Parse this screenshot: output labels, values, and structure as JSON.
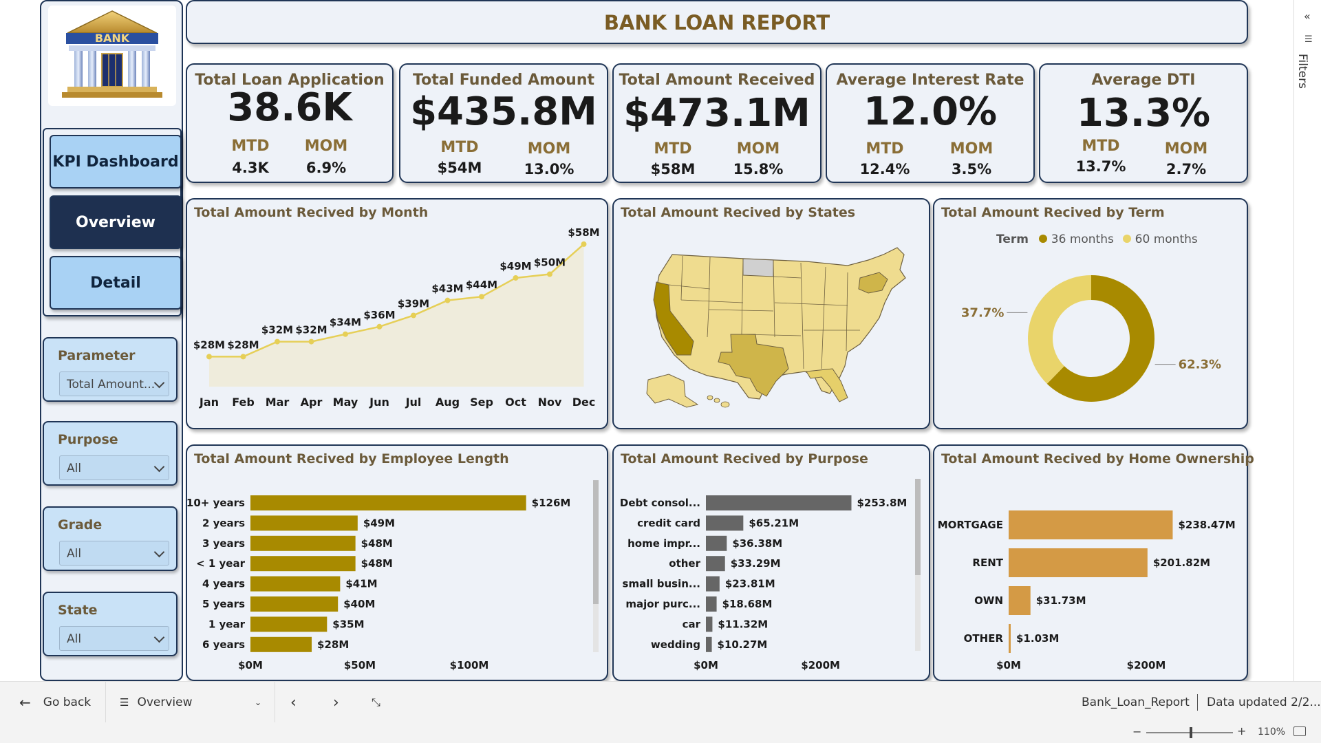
{
  "report": {
    "title": "BANK LOAN REPORT"
  },
  "logo": {
    "text": "BANK"
  },
  "nav": {
    "kpi": "KPI Dashboard",
    "overview": "Overview",
    "detail": "Detail"
  },
  "slicers": [
    {
      "title": "Parameter",
      "value": "Total Amount..."
    },
    {
      "title": "Purpose",
      "value": "All"
    },
    {
      "title": "Grade",
      "value": "All"
    },
    {
      "title": "State",
      "value": "All"
    }
  ],
  "kpis": [
    {
      "title": "Total Loan Application",
      "value": "38.6K",
      "mtd_label": "MTD",
      "mtd": "4.3K",
      "mom_label": "MOM",
      "mom": "6.9%"
    },
    {
      "title": "Total Funded Amount",
      "value": "$435.8M",
      "mtd_label": "MTD",
      "mtd": "$54M",
      "mom_label": "MOM",
      "mom": "13.0%"
    },
    {
      "title": "Total Amount Received",
      "value": "$473.1M",
      "mtd_label": "MTD",
      "mtd": "$58M",
      "mom_label": "MOM",
      "mom": "15.8%"
    },
    {
      "title": "Average Interest Rate",
      "value": "12.0%",
      "mtd_label": "MTD",
      "mtd": "12.4%",
      "mom_label": "MOM",
      "mom": "3.5%"
    },
    {
      "title": "Average DTI",
      "value": "13.3%",
      "mtd_label": "MTD",
      "mtd": "13.7%",
      "mom_label": "MOM",
      "mom": "2.7%"
    }
  ],
  "colors": {
    "gold": "#a88a00",
    "light_gold": "#e9d46a",
    "orange": "#d49a45",
    "grey_bar": "#666666",
    "navy": "#1e3050",
    "button_blue": "#a9d2f4"
  },
  "chart_data": [
    {
      "type": "area",
      "title": "Total Amount Recived by Month",
      "categories": [
        "Jan",
        "Feb",
        "Mar",
        "Apr",
        "May",
        "Jun",
        "Jul",
        "Aug",
        "Sep",
        "Oct",
        "Nov",
        "Dec"
      ],
      "values": [
        28,
        28,
        32,
        32,
        34,
        36,
        39,
        43,
        44,
        49,
        50,
        58
      ],
      "labels": [
        "$28M",
        "$28M",
        "$32M",
        "$32M",
        "$34M",
        "$36M",
        "$39M",
        "$43M",
        "$44M",
        "$49M",
        "$50M",
        "$58M"
      ]
    },
    {
      "type": "map",
      "title": "Total Amount Recived by States"
    },
    {
      "type": "pie",
      "title": "Total Amount Recived by Term",
      "legend_title": "Term",
      "series": [
        {
          "name": "36 months",
          "value": 62.3,
          "label": "62.3%",
          "color": "#a88a00"
        },
        {
          "name": "60 months",
          "value": 37.7,
          "label": "37.7%",
          "color": "#e9d46a"
        }
      ]
    },
    {
      "type": "bar",
      "title": "Total Amount Recived by Employee Length",
      "categories": [
        "10+ years",
        "2 years",
        "3 years",
        "< 1 year",
        "4 years",
        "5 years",
        "1 year",
        "6 years"
      ],
      "values": [
        126,
        49,
        48,
        48,
        41,
        40,
        35,
        28
      ],
      "labels": [
        "$126M",
        "$49M",
        "$48M",
        "$48M",
        "$41M",
        "$40M",
        "$35M",
        "$28M"
      ],
      "xticks": [
        "$0M",
        "$50M",
        "$100M"
      ],
      "xlim": [
        0,
        150
      ]
    },
    {
      "type": "bar",
      "title": "Total Amount Recived by Purpose",
      "categories": [
        "Debt consol...",
        "credit card",
        "home impr...",
        "other",
        "small busin...",
        "major purc...",
        "car",
        "wedding"
      ],
      "values": [
        253.8,
        65.21,
        36.38,
        33.29,
        23.81,
        18.68,
        11.32,
        10.27
      ],
      "labels": [
        "$253.8M",
        "$65.21M",
        "$36.38M",
        "$33.29M",
        "$23.81M",
        "$18.68M",
        "$11.32M",
        "$10.27M"
      ],
      "xticks": [
        "$0M",
        "$200M"
      ],
      "xlim": [
        0,
        360
      ]
    },
    {
      "type": "bar",
      "title": "Total Amount Recived by Home Ownership",
      "categories": [
        "MORTGAGE",
        "RENT",
        "OWN",
        "OTHER"
      ],
      "values": [
        238.47,
        201.82,
        31.73,
        1.03
      ],
      "labels": [
        "$238.47M",
        "$201.82M",
        "$31.73M",
        "$1.03M"
      ],
      "xticks": [
        "$0M",
        "$200M"
      ],
      "xlim": [
        0,
        330
      ]
    }
  ],
  "bottom": {
    "back": "Go back",
    "page": "Overview",
    "file": "Bank_Loan_Report",
    "updated": "Data updated 2/2...",
    "zoom": "110%"
  },
  "filters_label": "Filters"
}
